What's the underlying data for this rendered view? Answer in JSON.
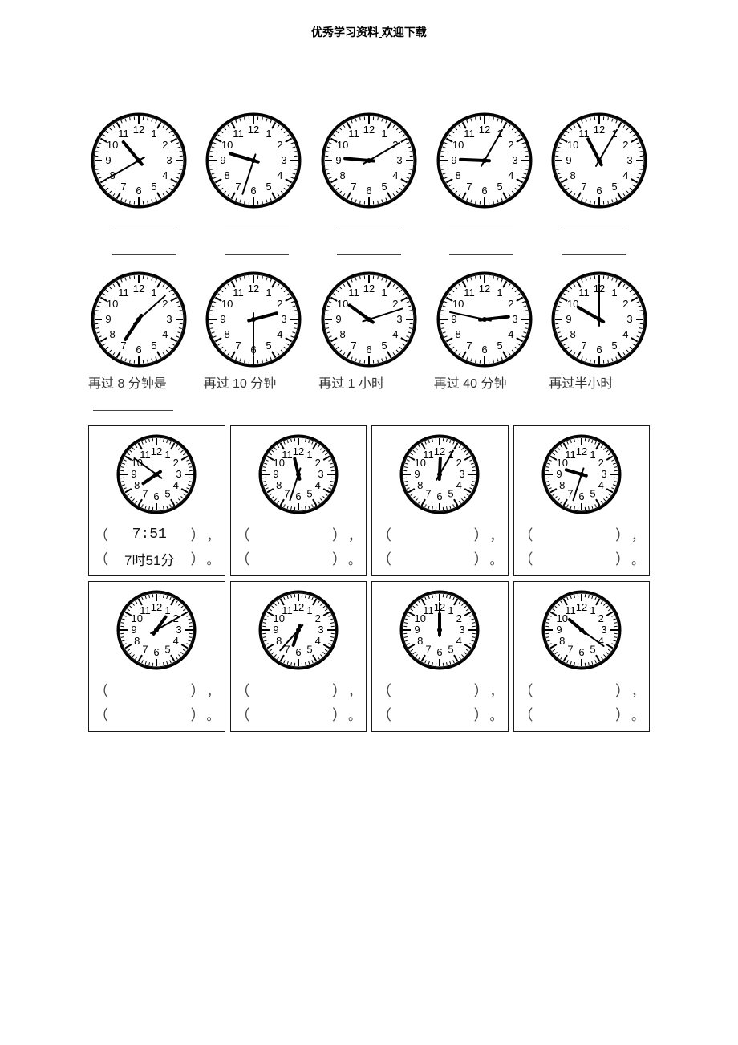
{
  "header": {
    "prefix": "优秀学习资料",
    "underline": "   ",
    "suffix": "欢迎下载"
  },
  "clockStyle": {
    "face_fill": "#ffffff",
    "rim_stroke": "#000000",
    "rim_width": 3,
    "tick_stroke": "#000000",
    "num_font_size": 13,
    "num_color": "#000000",
    "hour_hand_width": 4,
    "minute_hand_width": 2
  },
  "row1": [
    {
      "hour": 10,
      "minute": 40,
      "radius": 58
    },
    {
      "hour": 9,
      "minute": 33,
      "radius": 58
    },
    {
      "hour": 9,
      "minute": 10,
      "radius": 58
    },
    {
      "hour": 9,
      "minute": 5,
      "radius": 58
    },
    {
      "hour": 11,
      "minute": 5,
      "radius": 58
    }
  ],
  "row2": [
    {
      "hour": 7,
      "minute": 8,
      "radius": 58,
      "caption": "再过 8 分钟是"
    },
    {
      "hour": 2,
      "minute": 30,
      "radius": 58,
      "caption": "再过 10 分钟"
    },
    {
      "hour": 10,
      "minute": 12,
      "radius": 58,
      "caption": "再过 1 小时"
    },
    {
      "hour": 2,
      "minute": 47,
      "radius": 58,
      "caption": "再过 40 分钟"
    },
    {
      "hour": 10,
      "minute": 0,
      "radius": 58,
      "caption": "再过半小时"
    }
  ],
  "section3": {
    "rowA": [
      {
        "hour": 7,
        "minute": 51,
        "radius": 48,
        "ans1": "7:51",
        "ans2": "7时51分"
      },
      {
        "hour": 11,
        "minute": 33,
        "radius": 48,
        "ans1": "",
        "ans2": ""
      },
      {
        "hour": 12,
        "minute": 5,
        "radius": 48,
        "ans1": "",
        "ans2": ""
      },
      {
        "hour": 9,
        "minute": 33,
        "radius": 48,
        "ans1": "",
        "ans2": ""
      }
    ],
    "rowB": [
      {
        "hour": 1,
        "minute": 10,
        "radius": 48,
        "ans1": "",
        "ans2": ""
      },
      {
        "hour": 6,
        "minute": 37,
        "radius": 48,
        "ans1": "",
        "ans2": ""
      },
      {
        "hour": 12,
        "minute": 0,
        "radius": 48,
        "ans1": "",
        "ans2": ""
      },
      {
        "hour": 10,
        "minute": 21,
        "radius": 48,
        "ans1": "",
        "ans2": ""
      }
    ]
  },
  "punct": {
    "comma": "，",
    "period": "。"
  }
}
